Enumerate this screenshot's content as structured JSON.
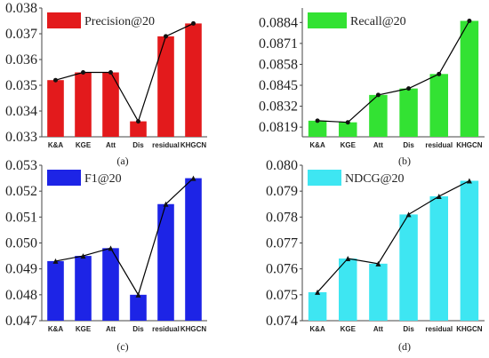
{
  "chart_data": [
    {
      "type": "bar",
      "panel_caption": "(a)",
      "categories": [
        "K&A",
        "KGE",
        "Att",
        "Dis",
        "residual",
        "KHGCN"
      ],
      "series": [
        {
          "name": "Precision@20",
          "values": [
            0.0352,
            0.0355,
            0.0355,
            0.0336,
            0.0369,
            0.0374
          ]
        }
      ],
      "overlay_line": true,
      "ylim": [
        0.033,
        0.038
      ],
      "yticks": [
        "0.033",
        "0.034",
        "0.035",
        "0.036",
        "0.037",
        "0.038"
      ],
      "color": "#e31a1c",
      "line_color": "#000000",
      "legend_position": "top-left"
    },
    {
      "type": "bar",
      "panel_caption": "(b)",
      "categories": [
        "K&A",
        "KGE",
        "Att",
        "Dis",
        "residual",
        "KHGCN"
      ],
      "series": [
        {
          "name": "Recall@20",
          "values": [
            0.0823,
            0.0822,
            0.0839,
            0.0843,
            0.0852,
            0.0885
          ]
        }
      ],
      "overlay_line": true,
      "ylim": [
        0.0813,
        0.0893
      ],
      "yticks": [
        "0.0819",
        "0.0832",
        "0.0845",
        "0.0858",
        "0.0871",
        "0.0884"
      ],
      "color": "#33e233",
      "line_color": "#000000",
      "legend_position": "top-left"
    },
    {
      "type": "bar",
      "panel_caption": "(c)",
      "categories": [
        "K&A",
        "KGE",
        "Att",
        "Dis",
        "residual",
        "KHGCN"
      ],
      "series": [
        {
          "name": "F1@20",
          "values": [
            0.0493,
            0.0495,
            0.0498,
            0.048,
            0.0515,
            0.0525
          ]
        }
      ],
      "overlay_line": true,
      "ylim": [
        0.047,
        0.053
      ],
      "yticks": [
        "0.047",
        "0.048",
        "0.049",
        "0.050",
        "0.051",
        "0.052",
        "0.053"
      ],
      "color": "#1d24e6",
      "line_color": "#000000",
      "legend_position": "top-left"
    },
    {
      "type": "bar",
      "panel_caption": "(d)",
      "categories": [
        "K&A",
        "KGE",
        "Att",
        "Dis",
        "residual",
        "KHGCN"
      ],
      "series": [
        {
          "name": "NDCG@20",
          "values": [
            0.0751,
            0.0764,
            0.0762,
            0.0781,
            0.0788,
            0.0794
          ]
        }
      ],
      "overlay_line": true,
      "ylim": [
        0.074,
        0.08
      ],
      "yticks": [
        "0.074",
        "0.075",
        "0.076",
        "0.077",
        "0.078",
        "0.079",
        "0.080"
      ],
      "color": "#3ee6f2",
      "line_color": "#000000",
      "legend_position": "top-left"
    }
  ]
}
